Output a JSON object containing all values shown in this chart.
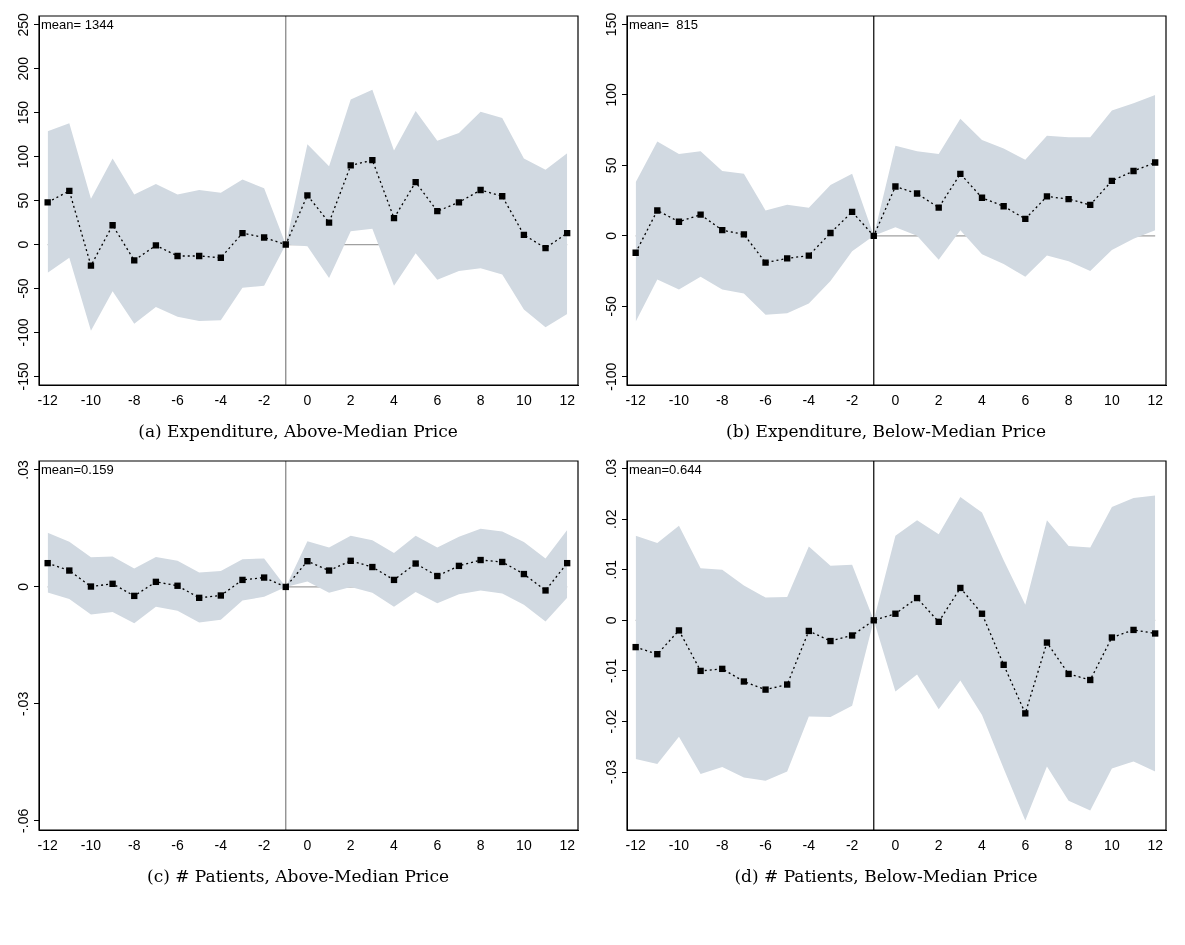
{
  "chart_data": [
    {
      "type": "line",
      "title": "(a) Expenditure, Above-Median Price",
      "annotations": [
        "mean= 1344"
      ],
      "x": [
        -12,
        -11,
        -10,
        -9,
        -8,
        -7,
        -6,
        -5,
        -4,
        -3,
        -2,
        -1,
        0,
        1,
        2,
        3,
        4,
        5,
        6,
        7,
        8,
        9,
        10,
        11,
        12
      ],
      "series": [
        {
          "color": "#000000",
          "values": [
            48,
            61,
            -24,
            22,
            -18,
            -1,
            -13,
            -13,
            -15,
            13,
            8,
            0,
            56,
            25,
            90,
            96,
            30,
            71,
            38,
            48,
            62,
            55,
            11,
            -4,
            13
          ],
          "lower": [
            -32,
            -15,
            -98,
            -53,
            -90,
            -71,
            -82,
            -87,
            -86,
            -49,
            -47,
            0,
            -2,
            -38,
            15,
            18,
            -47,
            -10,
            -40,
            -30,
            -27,
            -34,
            -74,
            -94,
            -79
          ],
          "upper": [
            129,
            138,
            52,
            98,
            57,
            69,
            57,
            62,
            59,
            74,
            64,
            0,
            114,
            89,
            165,
            176,
            107,
            152,
            118,
            127,
            151,
            144,
            98,
            85,
            104
          ]
        }
      ],
      "xlim": [
        -12.4,
        12.5
      ],
      "xticks": [
        -12,
        -10,
        -8,
        -6,
        -4,
        -2,
        0,
        2,
        4,
        6,
        8,
        10,
        12
      ],
      "ylim": [
        -160,
        260
      ],
      "yticks": [
        -150,
        -100,
        -50,
        0,
        50,
        100,
        150,
        200,
        250
      ],
      "ref_lines": [
        {
          "axis": "x",
          "value": -1,
          "color": "#808080"
        },
        {
          "axis": "y",
          "value": 0,
          "color": "#a0a0a0"
        }
      ],
      "grid": false,
      "legend": false,
      "marker": "square",
      "line_style": "dotted"
    },
    {
      "type": "line",
      "title": "(b) Expenditure, Below-Median Price",
      "annotations": [
        "mean=  815"
      ],
      "x": [
        -12,
        -11,
        -10,
        -9,
        -8,
        -7,
        -6,
        -5,
        -4,
        -3,
        -2,
        -1,
        0,
        1,
        2,
        3,
        4,
        5,
        6,
        7,
        8,
        9,
        10,
        11,
        12
      ],
      "series": [
        {
          "color": "#000000",
          "values": [
            -12,
            18,
            10,
            15,
            4,
            1,
            -19,
            -16,
            -14,
            2,
            17,
            0,
            35,
            30,
            20,
            44,
            27,
            21,
            12,
            28,
            26,
            22,
            39,
            46,
            52
          ],
          "lower": [
            -61,
            -31,
            -38,
            -29,
            -38,
            -41,
            -56,
            -55,
            -48,
            -32,
            -11,
            0,
            6,
            0,
            -17,
            4,
            -13,
            -20,
            -29,
            -14,
            -18,
            -25,
            -10,
            -2,
            4
          ],
          "upper": [
            38,
            67,
            58,
            60,
            46,
            44,
            18,
            22,
            20,
            36,
            44,
            0,
            64,
            60,
            58,
            83,
            68,
            62,
            54,
            71,
            70,
            70,
            89,
            94,
            100
          ]
        }
      ],
      "xlim": [
        -12.4,
        12.5
      ],
      "xticks": [
        -12,
        -10,
        -8,
        -6,
        -4,
        -2,
        0,
        2,
        4,
        6,
        8,
        10,
        12
      ],
      "ylim": [
        -106,
        156
      ],
      "yticks": [
        -100,
        -50,
        0,
        50,
        100,
        150
      ],
      "ref_lines": [
        {
          "axis": "x",
          "value": -1,
          "color": "#000000"
        },
        {
          "axis": "y",
          "value": 0,
          "color": "#a0a0a0"
        }
      ],
      "grid": false,
      "legend": false,
      "marker": "square",
      "line_style": "dotted"
    },
    {
      "type": "line",
      "title": "(c) # Patients, Above-Median Price",
      "annotations": [
        "mean=0.159"
      ],
      "x": [
        -12,
        -11,
        -10,
        -9,
        -8,
        -7,
        -6,
        -5,
        -4,
        -3,
        -2,
        -1,
        0,
        1,
        2,
        3,
        4,
        5,
        6,
        7,
        8,
        9,
        10,
        11,
        12
      ],
      "series": [
        {
          "color": "#000000",
          "values": [
            0.0061,
            0.0042,
            0.0001,
            0.0008,
            -0.0023,
            0.0013,
            0.0003,
            -0.0028,
            -0.0022,
            0.0018,
            0.0024,
            0,
            0.0066,
            0.0042,
            0.0067,
            0.0051,
            0.0018,
            0.006,
            0.0028,
            0.0054,
            0.0069,
            0.0064,
            0.0033,
            -0.0009,
            0.0061
          ],
          "lower": [
            -0.0014,
            -0.0031,
            -0.0071,
            -0.0064,
            -0.0093,
            -0.0051,
            -0.0061,
            -0.0091,
            -0.0084,
            -0.0035,
            -0.0025,
            0,
            0.0014,
            -0.0015,
            0,
            -0.0015,
            -0.0051,
            -0.0013,
            -0.0042,
            -0.0019,
            -0.0009,
            -0.0017,
            -0.0046,
            -0.0089,
            -0.0028
          ],
          "upper": [
            0.0139,
            0.0116,
            0.0076,
            0.0078,
            0.0047,
            0.0077,
            0.0067,
            0.0037,
            0.0041,
            0.0071,
            0.0073,
            0,
            0.0117,
            0.0101,
            0.0131,
            0.012,
            0.0087,
            0.0131,
            0.0101,
            0.0129,
            0.0149,
            0.0142,
            0.0115,
            0.0073,
            0.0146
          ]
        }
      ],
      "xlim": [
        -12.4,
        12.5
      ],
      "xticks": [
        -12,
        -10,
        -8,
        -6,
        -4,
        -2,
        0,
        2,
        4,
        6,
        8,
        10,
        12
      ],
      "ylim": [
        -0.0624,
        0.0323
      ],
      "yticks": [
        {
          "value": -0.06,
          "label": "-.06"
        },
        {
          "value": -0.03,
          "label": "-.03"
        },
        0,
        {
          "value": 0.03,
          "label": ".03"
        }
      ],
      "ref_lines": [
        {
          "axis": "x",
          "value": -1,
          "color": "#808080"
        },
        {
          "axis": "y",
          "value": 0,
          "color": "#a0a0a0"
        }
      ],
      "grid": false,
      "legend": false,
      "marker": "square",
      "line_style": "dotted"
    },
    {
      "type": "line",
      "title": "(d) # Patients, Below-Median Price",
      "annotations": [
        "mean=0.644"
      ],
      "x": [
        -12,
        -11,
        -10,
        -9,
        -8,
        -7,
        -6,
        -5,
        -4,
        -3,
        -2,
        -1,
        0,
        1,
        2,
        3,
        4,
        5,
        6,
        7,
        8,
        9,
        10,
        11,
        12
      ],
      "series": [
        {
          "color": "#000000",
          "values": [
            -0.0053,
            -0.0067,
            -0.002,
            -0.01,
            -0.0096,
            -0.0121,
            -0.0137,
            -0.0127,
            -0.0021,
            -0.0041,
            -0.003,
            0,
            0.0013,
            0.0044,
            -0.0003,
            0.0064,
            0.0013,
            -0.0088,
            -0.0184,
            -0.0044,
            -0.0106,
            -0.0118,
            -0.0034,
            -0.0019,
            -0.0026
          ],
          "lower": [
            -0.0274,
            -0.0284,
            -0.023,
            -0.0304,
            -0.029,
            -0.0311,
            -0.0317,
            -0.0299,
            -0.019,
            -0.0191,
            -0.0169,
            0,
            -0.0141,
            -0.0107,
            -0.0176,
            -0.0119,
            -0.0187,
            -0.0293,
            -0.0396,
            -0.0289,
            -0.0357,
            -0.0376,
            -0.0293,
            -0.0279,
            -0.0299
          ],
          "upper": [
            0.0167,
            0.0153,
            0.0187,
            0.0103,
            0.01,
            0.0069,
            0.0045,
            0.0046,
            0.0146,
            0.0108,
            0.011,
            0,
            0.0167,
            0.0198,
            0.017,
            0.0244,
            0.0213,
            0.0119,
            0.0031,
            0.0198,
            0.0147,
            0.0144,
            0.0224,
            0.0242,
            0.0247
          ]
        }
      ],
      "xlim": [
        -12.4,
        12.5
      ],
      "xticks": [
        -12,
        -10,
        -8,
        -6,
        -4,
        -2,
        0,
        2,
        4,
        6,
        8,
        10,
        12
      ],
      "ylim": [
        -0.0415,
        0.0315
      ],
      "yticks": [
        {
          "value": -0.03,
          "label": "-.03"
        },
        {
          "value": -0.02,
          "label": "-.02"
        },
        {
          "value": -0.01,
          "label": "-.01"
        },
        0,
        {
          "value": 0.01,
          "label": ".01"
        },
        {
          "value": 0.02,
          "label": ".02"
        },
        {
          "value": 0.03,
          "label": ".03"
        }
      ],
      "ref_lines": [
        {
          "axis": "x",
          "value": -1,
          "color": "#000000"
        },
        {
          "axis": "y",
          "value": 0,
          "color": "#a0a0a0"
        }
      ],
      "grid": false,
      "legend": false,
      "marker": "square",
      "line_style": "dotted"
    }
  ]
}
